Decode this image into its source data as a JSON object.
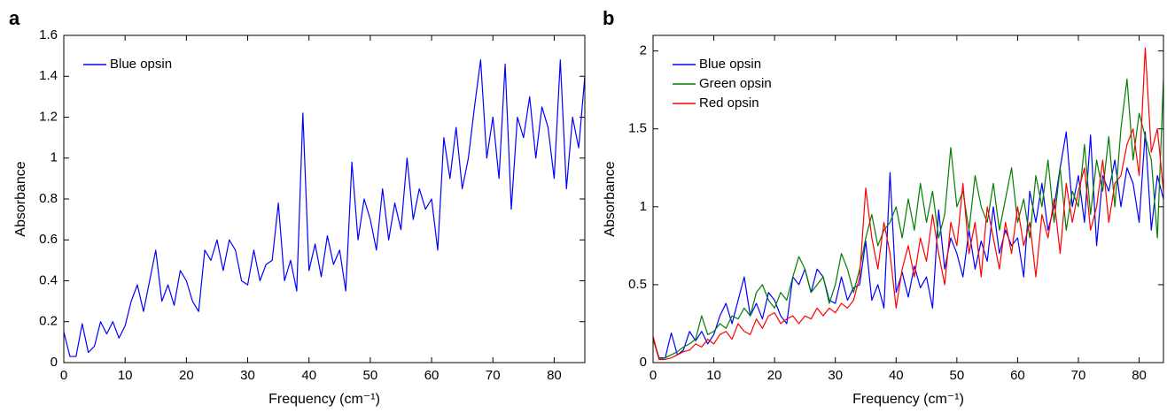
{
  "chart_data": [
    {
      "type": "line",
      "label": "a",
      "xlabel": "Frequency (cm⁻¹)",
      "ylabel": "Absorbance",
      "xlim": [
        0,
        85
      ],
      "xticks": [
        0,
        10,
        20,
        30,
        40,
        50,
        60,
        70,
        80
      ],
      "ylim": [
        0,
        1.6
      ],
      "yticks": [
        0,
        0.2,
        0.4,
        0.6,
        0.8,
        1,
        1.2,
        1.4,
        1.6
      ],
      "legend": "upper left",
      "x": [
        0,
        1,
        2,
        3,
        4,
        5,
        6,
        7,
        8,
        9,
        10,
        11,
        12,
        13,
        14,
        15,
        16,
        17,
        18,
        19,
        20,
        21,
        22,
        23,
        24,
        25,
        26,
        27,
        28,
        29,
        30,
        31,
        32,
        33,
        34,
        35,
        36,
        37,
        38,
        39,
        40,
        41,
        42,
        43,
        44,
        45,
        46,
        47,
        48,
        49,
        50,
        51,
        52,
        53,
        54,
        55,
        56,
        57,
        58,
        59,
        60,
        61,
        62,
        63,
        64,
        65,
        66,
        67,
        68,
        69,
        70,
        71,
        72,
        73,
        74,
        75,
        76,
        77,
        78,
        79,
        80,
        81,
        82,
        83,
        84,
        85
      ],
      "series": [
        {
          "name": "Blue opsin",
          "color": "#0000ff",
          "values": [
            0.15,
            0.03,
            0.03,
            0.19,
            0.05,
            0.08,
            0.2,
            0.14,
            0.2,
            0.12,
            0.18,
            0.3,
            0.38,
            0.25,
            0.4,
            0.55,
            0.3,
            0.38,
            0.28,
            0.45,
            0.4,
            0.3,
            0.25,
            0.55,
            0.5,
            0.6,
            0.45,
            0.6,
            0.55,
            0.4,
            0.38,
            0.55,
            0.4,
            0.48,
            0.5,
            0.78,
            0.4,
            0.5,
            0.35,
            1.22,
            0.45,
            0.58,
            0.42,
            0.62,
            0.48,
            0.55,
            0.35,
            0.98,
            0.6,
            0.8,
            0.7,
            0.55,
            0.85,
            0.6,
            0.78,
            0.65,
            1.0,
            0.7,
            0.85,
            0.75,
            0.8,
            0.55,
            1.1,
            0.9,
            1.15,
            0.85,
            1.0,
            1.25,
            1.48,
            1.0,
            1.2,
            0.9,
            1.46,
            0.75,
            1.2,
            1.1,
            1.3,
            1.0,
            1.25,
            1.15,
            0.9,
            1.48,
            0.85,
            1.2,
            1.05,
            1.4
          ]
        }
      ]
    },
    {
      "type": "line",
      "label": "b",
      "xlabel": "Frequency (cm⁻¹)",
      "ylabel": "Absorbance",
      "xlim": [
        0,
        84
      ],
      "xticks": [
        0,
        10,
        20,
        30,
        40,
        50,
        60,
        70,
        80
      ],
      "ylim": [
        0,
        2.1
      ],
      "yticks": [
        0,
        0.5,
        1,
        1.5,
        2
      ],
      "legend": "upper left",
      "x": [
        0,
        1,
        2,
        3,
        4,
        5,
        6,
        7,
        8,
        9,
        10,
        11,
        12,
        13,
        14,
        15,
        16,
        17,
        18,
        19,
        20,
        21,
        22,
        23,
        24,
        25,
        26,
        27,
        28,
        29,
        30,
        31,
        32,
        33,
        34,
        35,
        36,
        37,
        38,
        39,
        40,
        41,
        42,
        43,
        44,
        45,
        46,
        47,
        48,
        49,
        50,
        51,
        52,
        53,
        54,
        55,
        56,
        57,
        58,
        59,
        60,
        61,
        62,
        63,
        64,
        65,
        66,
        67,
        68,
        69,
        70,
        71,
        72,
        73,
        74,
        75,
        76,
        77,
        78,
        79,
        80,
        81,
        82,
        83,
        84
      ],
      "series": [
        {
          "name": "Blue opsin",
          "color": "#0000ff",
          "values": [
            0.15,
            0.03,
            0.03,
            0.19,
            0.05,
            0.08,
            0.2,
            0.14,
            0.2,
            0.12,
            0.18,
            0.3,
            0.38,
            0.25,
            0.4,
            0.55,
            0.3,
            0.38,
            0.28,
            0.45,
            0.4,
            0.3,
            0.25,
            0.55,
            0.5,
            0.6,
            0.45,
            0.6,
            0.55,
            0.4,
            0.38,
            0.55,
            0.4,
            0.48,
            0.5,
            0.78,
            0.4,
            0.5,
            0.35,
            1.22,
            0.45,
            0.58,
            0.42,
            0.62,
            0.48,
            0.55,
            0.35,
            0.98,
            0.6,
            0.8,
            0.7,
            0.55,
            0.85,
            0.6,
            0.78,
            0.65,
            1.0,
            0.7,
            0.85,
            0.75,
            0.8,
            0.55,
            1.1,
            0.9,
            1.15,
            0.85,
            1.0,
            1.25,
            1.48,
            1.0,
            1.2,
            0.9,
            1.46,
            0.75,
            1.2,
            1.1,
            1.3,
            1.0,
            1.25,
            1.15,
            0.9,
            1.48,
            0.85,
            1.2,
            1.05
          ]
        },
        {
          "name": "Green opsin",
          "color": "#007f00",
          "values": [
            0.15,
            0.02,
            0.03,
            0.05,
            0.07,
            0.1,
            0.12,
            0.15,
            0.3,
            0.18,
            0.2,
            0.25,
            0.22,
            0.3,
            0.28,
            0.35,
            0.3,
            0.45,
            0.5,
            0.4,
            0.35,
            0.45,
            0.4,
            0.55,
            0.68,
            0.6,
            0.45,
            0.5,
            0.55,
            0.38,
            0.5,
            0.7,
            0.6,
            0.45,
            0.6,
            0.8,
            0.95,
            0.75,
            0.85,
            0.9,
            1.0,
            0.8,
            1.05,
            0.85,
            1.15,
            0.9,
            1.1,
            0.8,
            0.95,
            1.38,
            1.0,
            1.1,
            0.85,
            1.2,
            1.0,
            0.9,
            1.15,
            0.85,
            1.05,
            1.25,
            0.9,
            1.05,
            0.8,
            1.2,
            1.0,
            1.3,
            0.9,
            1.25,
            0.85,
            1.1,
            1.0,
            1.4,
            0.95,
            1.3,
            1.1,
            1.45,
            1.0,
            1.5,
            1.82,
            1.3,
            1.6,
            1.45,
            1.3,
            0.8,
            1.82
          ]
        },
        {
          "name": "Red opsin",
          "color": "#ff0000",
          "values": [
            0.17,
            0.02,
            0.02,
            0.03,
            0.05,
            0.07,
            0.08,
            0.12,
            0.1,
            0.15,
            0.12,
            0.18,
            0.2,
            0.15,
            0.25,
            0.2,
            0.18,
            0.28,
            0.22,
            0.3,
            0.32,
            0.25,
            0.28,
            0.3,
            0.25,
            0.3,
            0.28,
            0.35,
            0.3,
            0.35,
            0.32,
            0.38,
            0.35,
            0.4,
            0.55,
            1.12,
            0.8,
            0.6,
            0.9,
            0.7,
            0.35,
            0.6,
            0.75,
            0.55,
            0.8,
            0.65,
            0.95,
            0.7,
            0.5,
            0.9,
            0.75,
            1.15,
            0.7,
            0.9,
            0.55,
            1.0,
            0.8,
            0.6,
            0.9,
            0.7,
            1.0,
            0.75,
            0.9,
            0.55,
            0.95,
            0.8,
            1.05,
            0.7,
            1.15,
            0.9,
            1.1,
            1.25,
            0.85,
            1.0,
            1.3,
            0.9,
            1.15,
            1.2,
            1.4,
            1.5,
            1.2,
            2.02,
            1.35,
            1.5,
            1.1
          ]
        }
      ]
    }
  ]
}
